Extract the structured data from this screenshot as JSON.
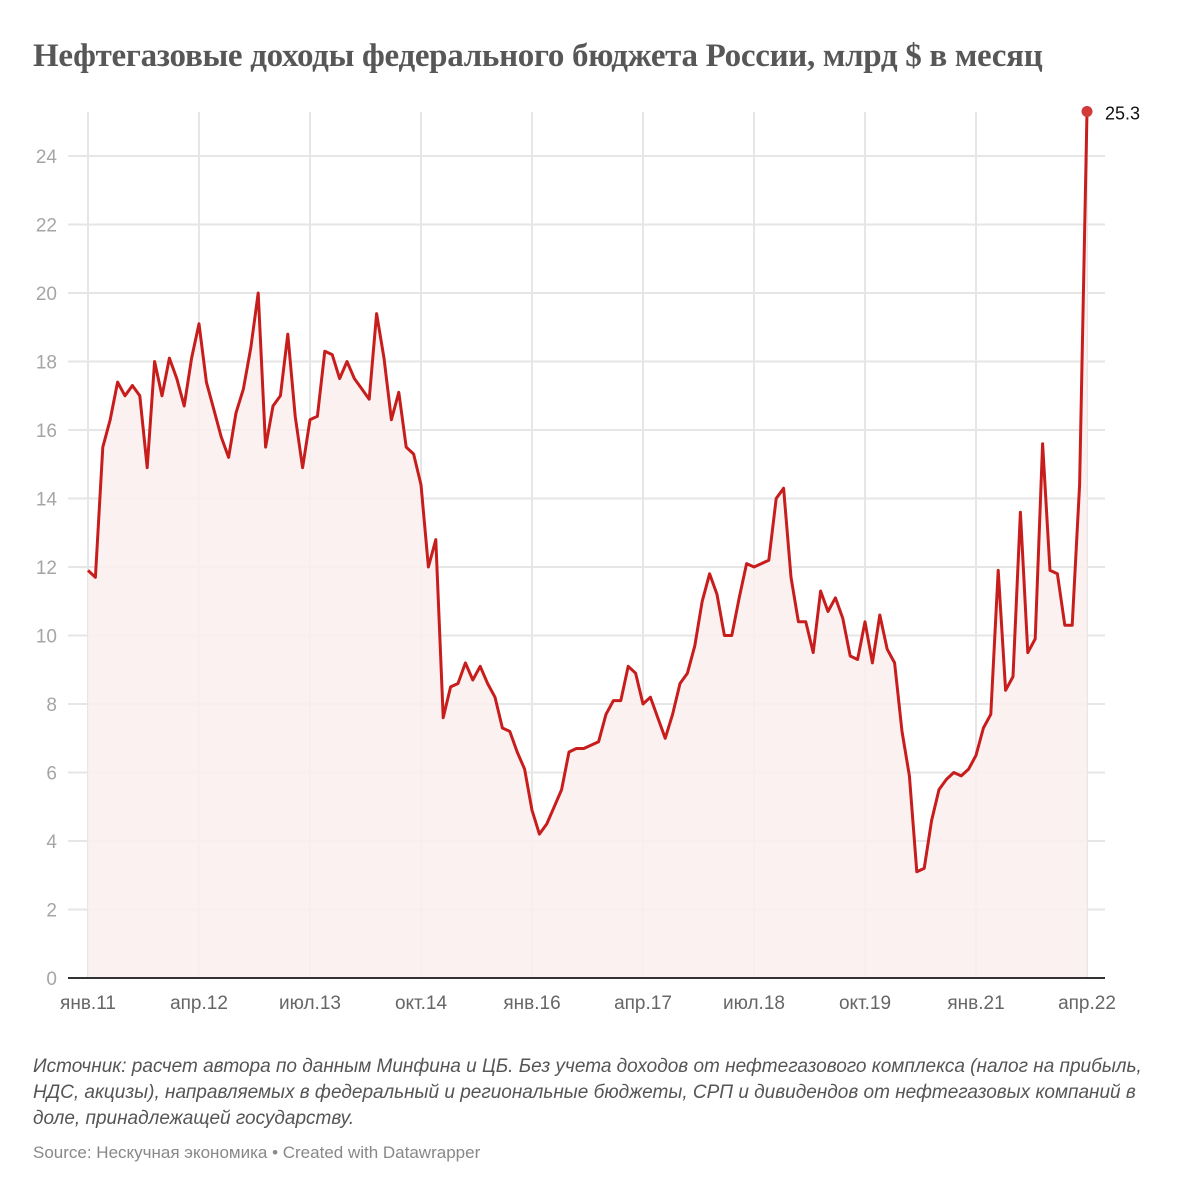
{
  "title": "Нефтегазовые доходы федерального бюджета России, млрд $ в месяц",
  "notes": "Источник: расчет автора по данным Минфина и ЦБ. Без учета доходов от нефтегазового комплекса (налог на прибыль, НДС, акцизы), направляемых в федеральный и региональные бюджеты, СРП и дивидендов от нефтегазовых компаний в доле, принадлежащей государству.",
  "source": "Source: Нескучная экономика • Created with Datawrapper",
  "colors": {
    "line": "#c71e1d",
    "area": "#fbeeee",
    "grid": "#e6e6e6",
    "axis": "#333333"
  },
  "chart_data": {
    "type": "area",
    "title": "Нефтегазовые доходы федерального бюджета России, млрд $ в месяц",
    "xlabel": "",
    "ylabel": "млрд $",
    "ylim": [
      0,
      25.3
    ],
    "yticks": [
      0,
      2,
      4,
      6,
      8,
      10,
      12,
      14,
      16,
      18,
      20,
      22,
      24
    ],
    "xticks": [
      "янв.11",
      "апр.12",
      "июл.13",
      "окт.14",
      "янв.16",
      "апр.17",
      "июл.18",
      "окт.19",
      "янв.21",
      "апр.22"
    ],
    "grid": true,
    "end_label": "25.3",
    "x_start": "янв.11",
    "x_end": "апр.22",
    "frequency": "monthly",
    "values": [
      11.9,
      11.7,
      15.5,
      16.3,
      17.4,
      17.0,
      17.3,
      17.0,
      14.9,
      18.0,
      17.0,
      18.1,
      17.5,
      16.7,
      18.1,
      19.1,
      17.4,
      16.6,
      15.8,
      15.2,
      16.5,
      17.2,
      18.4,
      20.0,
      15.5,
      16.7,
      17.0,
      18.8,
      16.4,
      14.9,
      16.3,
      16.4,
      18.3,
      18.2,
      17.5,
      18.0,
      17.5,
      17.2,
      16.9,
      19.4,
      18.1,
      16.3,
      17.1,
      15.5,
      15.3,
      14.4,
      12.0,
      12.8,
      7.6,
      8.5,
      8.6,
      9.2,
      8.7,
      9.1,
      8.6,
      8.2,
      7.3,
      7.2,
      6.6,
      6.1,
      4.9,
      4.2,
      4.5,
      5.0,
      5.5,
      6.6,
      6.7,
      6.7,
      6.8,
      6.9,
      7.7,
      8.1,
      8.1,
      9.1,
      8.9,
      8.0,
      8.2,
      7.6,
      7.0,
      7.7,
      8.6,
      8.9,
      9.7,
      11.0,
      11.8,
      11.2,
      10.0,
      10.0,
      11.1,
      12.1,
      12.0,
      12.1,
      12.2,
      14.0,
      14.3,
      11.7,
      10.4,
      10.4,
      9.5,
      11.3,
      10.7,
      11.1,
      10.5,
      9.4,
      9.3,
      10.4,
      9.2,
      10.6,
      9.6,
      9.2,
      7.2,
      5.9,
      3.1,
      3.2,
      4.6,
      5.5,
      5.8,
      6.0,
      5.9,
      6.1,
      6.5,
      7.3,
      7.7,
      11.9,
      8.4,
      8.8,
      13.6,
      9.5,
      9.9,
      15.6,
      11.9,
      11.8,
      10.3,
      10.3,
      14.4,
      25.3
    ]
  }
}
